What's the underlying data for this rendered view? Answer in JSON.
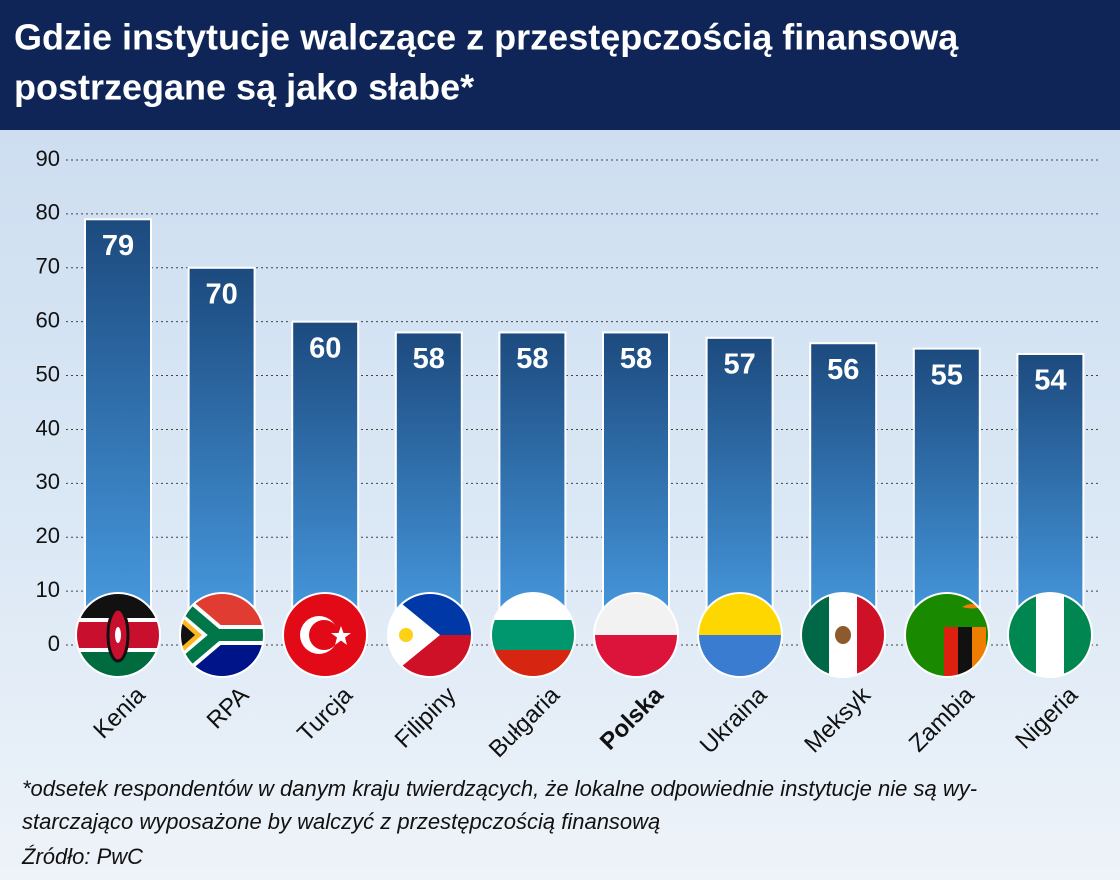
{
  "chart_data": {
    "type": "bar",
    "title": [
      "Gdzie instytucje walczące z przestępczością finansową",
      "postrzegane są jako słabe*"
    ],
    "categories": [
      "Kenia",
      "RPA",
      "Turcja",
      "Filipiny",
      "Bułgaria",
      "Polska",
      "Ukraina",
      "Meksyk",
      "Zambia",
      "Nigeria"
    ],
    "values": [
      79,
      70,
      60,
      58,
      58,
      58,
      57,
      56,
      55,
      54
    ],
    "highlight_index": 5,
    "color": "#2c6aa8",
    "ylim": [
      0,
      90
    ],
    "yticks": [
      0,
      10,
      20,
      30,
      40,
      50,
      60,
      70,
      80,
      90
    ],
    "grid": true,
    "footnote": [
      "*odsetek respondentów w danym kraju twierdzących, że lokalne odpowiednie instytucje nie są wy-",
      "starczająco wyposażone by walczyć z przestępczością finansową"
    ],
    "source": "Źródło: PwC"
  }
}
